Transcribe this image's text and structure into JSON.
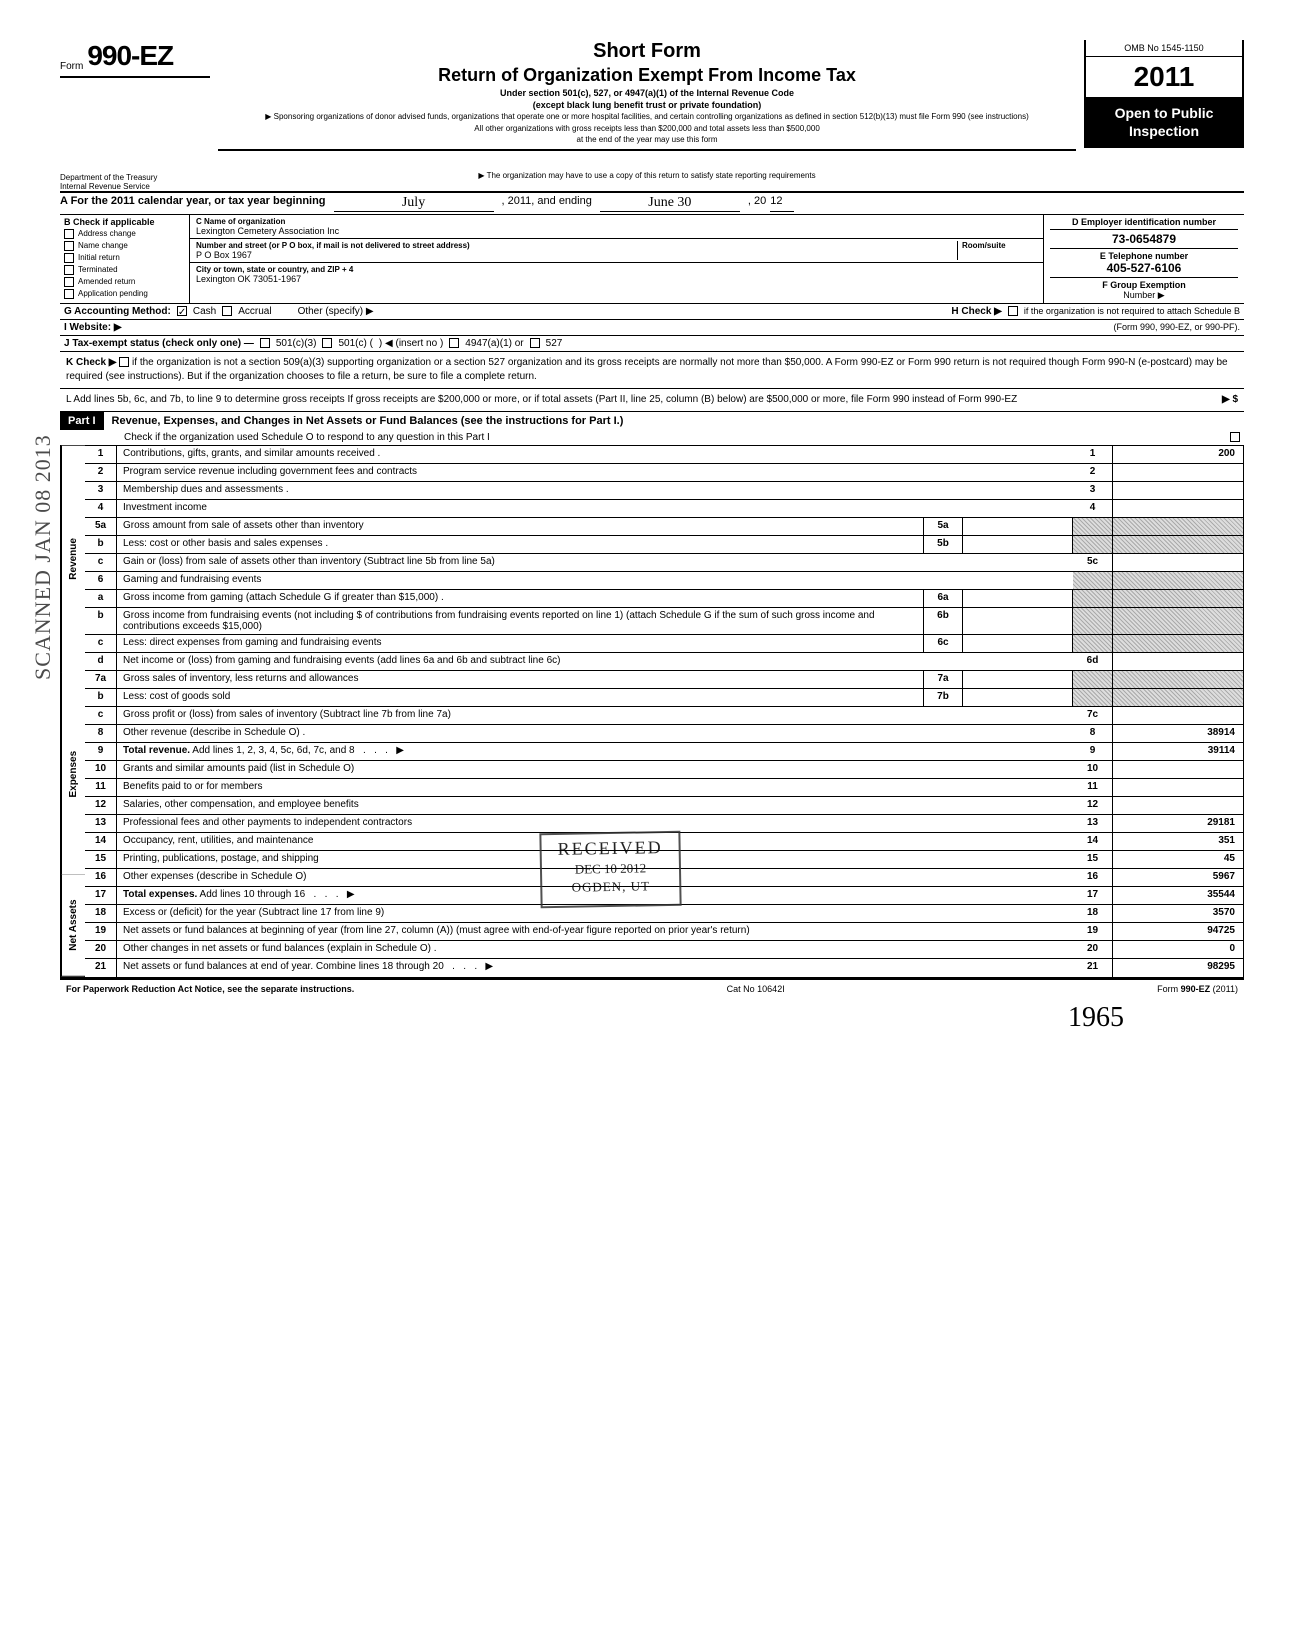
{
  "header": {
    "form_word": "Form",
    "form_number": "990-EZ",
    "title_short": "Short Form",
    "title_main": "Return of Organization Exempt From Income Tax",
    "subtitle1": "Under section 501(c), 527, or 4947(a)(1) of the Internal Revenue Code",
    "subtitle2": "(except black lung benefit trust or private foundation)",
    "note1": "▶ Sponsoring organizations of donor advised funds, organizations that operate one or more hospital facilities, and certain controlling organizations as defined in section 512(b)(13) must file Form 990 (see instructions)",
    "note2": "All other organizations with gross receipts less than $200,000 and total assets less than $500,000",
    "note3": "at the end of the year may use this form",
    "note4": "▶ The organization may have to use a copy of this return to satisfy state reporting requirements",
    "omb": "OMB No 1545-1150",
    "year_prefix": "20",
    "year_digits": "11",
    "open_public": "Open to Public Inspection",
    "dept1": "Department of the Treasury",
    "dept2": "Internal Revenue Service"
  },
  "section_a": {
    "label": "A  For the 2011 calendar year, or tax year beginning",
    "begin_hw": "July",
    "mid": ", 2011, and ending",
    "end_hw": "June 30",
    "end_year_prefix": ", 20",
    "end_year": "12"
  },
  "section_b": {
    "header": "B  Check if applicable",
    "items": [
      "Address change",
      "Name change",
      "Initial return",
      "Terminated",
      "Amended return",
      "Application pending"
    ]
  },
  "section_c": {
    "name_label": "C  Name of organization",
    "name": "Lexington Cemetery Association Inc",
    "addr_label": "Number and street (or P O  box, if mail is not delivered to street address)",
    "room_label": "Room/suite",
    "addr": "P O Box 1967",
    "city_label": "City or town, state or country, and ZIP + 4",
    "city": "Lexington OK  73051-1967"
  },
  "section_d": {
    "label": "D  Employer identification number",
    "value": "73-0654879",
    "e_label": "E  Telephone number",
    "e_value": "405-527-6106",
    "f_label": "F  Group Exemption",
    "f_sub": "Number  ▶"
  },
  "lines_gij": {
    "g": "G  Accounting Method:",
    "g_cash": "Cash",
    "g_accrual": "Accrual",
    "g_other": "Other (specify) ▶",
    "i": "I   Website: ▶",
    "j": "J  Tax-exempt status (check only one) —",
    "j_501c3": "501(c)(3)",
    "j_501c": "501(c) (",
    "j_insert": ")  ◀ (insert no )",
    "j_4947": "4947(a)(1) or",
    "j_527": "527",
    "h": "H  Check  ▶",
    "h_text": "if the organization is not required to attach Schedule B",
    "h_form": "(Form 990, 990-EZ, or 990-PF)."
  },
  "section_k": {
    "k_label": "K  Check ▶",
    "k_text": "if the organization is not a section 509(a)(3) supporting organization or a section 527 organization and its gross receipts are normally not more than $50,000. A Form 990-EZ or Form 990 return is not required though Form 990-N (e-postcard) may be required (see instructions). But if the organization chooses to file a return, be sure to file a complete return.",
    "l_text": "L  Add lines 5b, 6c, and 7b, to line 9 to determine gross receipts  If gross receipts are $200,000 or more, or if total assets (Part II, line 25, column (B) below) are $500,000 or more, file Form 990 instead of Form 990-EZ",
    "l_arrow": "▶  $"
  },
  "part1": {
    "label": "Part I",
    "title": "Revenue, Expenses, and Changes in Net Assets or Fund Balances (see the instructions for Part I.)",
    "check_line": "Check if the organization used Schedule O to respond to any question in this Part I"
  },
  "sections": {
    "revenue": "Revenue",
    "expenses": "Expenses",
    "netassets": "Net Assets"
  },
  "rows": [
    {
      "n": "1",
      "desc": "Contributions, gifts, grants, and similar amounts received .",
      "rn": "1",
      "rv": "200"
    },
    {
      "n": "2",
      "desc": "Program service revenue including government fees and contracts",
      "rn": "2",
      "rv": ""
    },
    {
      "n": "3",
      "desc": "Membership dues and assessments .",
      "rn": "3",
      "rv": ""
    },
    {
      "n": "4",
      "desc": "Investment income",
      "rn": "4",
      "rv": ""
    },
    {
      "n": "5a",
      "desc": "Gross amount from sale of assets other than inventory",
      "mid": "5a",
      "shaded": true
    },
    {
      "n": "b",
      "desc": "Less: cost or other basis and sales expenses .",
      "mid": "5b",
      "shaded": true
    },
    {
      "n": "c",
      "desc": "Gain or (loss) from sale of assets other than inventory (Subtract line 5b from line 5a)",
      "rn": "5c",
      "rv": ""
    },
    {
      "n": "6",
      "desc": "Gaming and fundraising events",
      "shaded": true,
      "noright": true
    },
    {
      "n": "a",
      "desc": "Gross income from gaming (attach Schedule G if greater than $15,000) .",
      "mid": "6a",
      "shaded": true
    },
    {
      "n": "b",
      "desc": "Gross income from fundraising events (not including  $                     of contributions from fundraising events reported on line 1) (attach Schedule G if the sum of such gross income and contributions exceeds $15,000)",
      "mid": "6b",
      "shaded": true
    },
    {
      "n": "c",
      "desc": "Less: direct expenses from gaming and fundraising events",
      "mid": "6c",
      "shaded": true
    },
    {
      "n": "d",
      "desc": "Net income or (loss) from gaming and fundraising events (add lines 6a and 6b and subtract line 6c)",
      "rn": "6d",
      "rv": ""
    },
    {
      "n": "7a",
      "desc": "Gross sales of inventory, less returns and allowances",
      "mid": "7a",
      "shaded": true
    },
    {
      "n": "b",
      "desc": "Less: cost of goods sold",
      "mid": "7b",
      "shaded": true
    },
    {
      "n": "c",
      "desc": "Gross profit or (loss) from sales of inventory (Subtract line 7b from line 7a)",
      "rn": "7c",
      "rv": ""
    },
    {
      "n": "8",
      "desc": "Other revenue (describe in Schedule O) .",
      "rn": "8",
      "rv": "38914"
    },
    {
      "n": "9",
      "desc": "Total revenue. Add lines 1, 2, 3, 4, 5c, 6d, 7c, and 8",
      "rn": "9",
      "rv": "39114",
      "bold": true,
      "arrow": true
    }
  ],
  "exp_rows": [
    {
      "n": "10",
      "desc": "Grants and similar amounts paid (list in Schedule O)",
      "rn": "10",
      "rv": ""
    },
    {
      "n": "11",
      "desc": "Benefits paid to or for members",
      "rn": "11",
      "rv": ""
    },
    {
      "n": "12",
      "desc": "Salaries, other compensation, and employee benefits",
      "rn": "12",
      "rv": ""
    },
    {
      "n": "13",
      "desc": "Professional fees and other payments to independent contractors",
      "rn": "13",
      "rv": "29181"
    },
    {
      "n": "14",
      "desc": "Occupancy, rent, utilities, and maintenance",
      "rn": "14",
      "rv": "351"
    },
    {
      "n": "15",
      "desc": "Printing, publications, postage, and shipping",
      "rn": "15",
      "rv": "45"
    },
    {
      "n": "16",
      "desc": "Other expenses (describe in Schedule O)",
      "rn": "16",
      "rv": "5967"
    },
    {
      "n": "17",
      "desc": "Total expenses. Add lines 10 through 16",
      "rn": "17",
      "rv": "35544",
      "bold": true,
      "arrow": true
    }
  ],
  "na_rows": [
    {
      "n": "18",
      "desc": "Excess or (deficit) for the year (Subtract line 17 from line 9)",
      "rn": "18",
      "rv": "3570"
    },
    {
      "n": "19",
      "desc": "Net assets or fund balances at beginning of year (from line 27, column (A)) (must agree with end-of-year figure reported on prior year's return)",
      "rn": "19",
      "rv": "94725"
    },
    {
      "n": "20",
      "desc": "Other changes in net assets or fund balances (explain in Schedule O) .",
      "rn": "20",
      "rv": "0"
    },
    {
      "n": "21",
      "desc": "Net assets or fund balances at end of year. Combine lines 18 through 20",
      "rn": "21",
      "rv": "98295",
      "arrow": true
    }
  ],
  "footer": {
    "left": "For Paperwork Reduction Act Notice, see the separate instructions.",
    "mid": "Cat No  10642I",
    "right": "Form 990-EZ (2011)"
  },
  "stamps": {
    "scanned": "SCANNED JAN 08 2013",
    "received1": "RECEIVED",
    "received2": "DEC 10 2012",
    "received3": "OGDEN, UT",
    "sig": "1965"
  }
}
